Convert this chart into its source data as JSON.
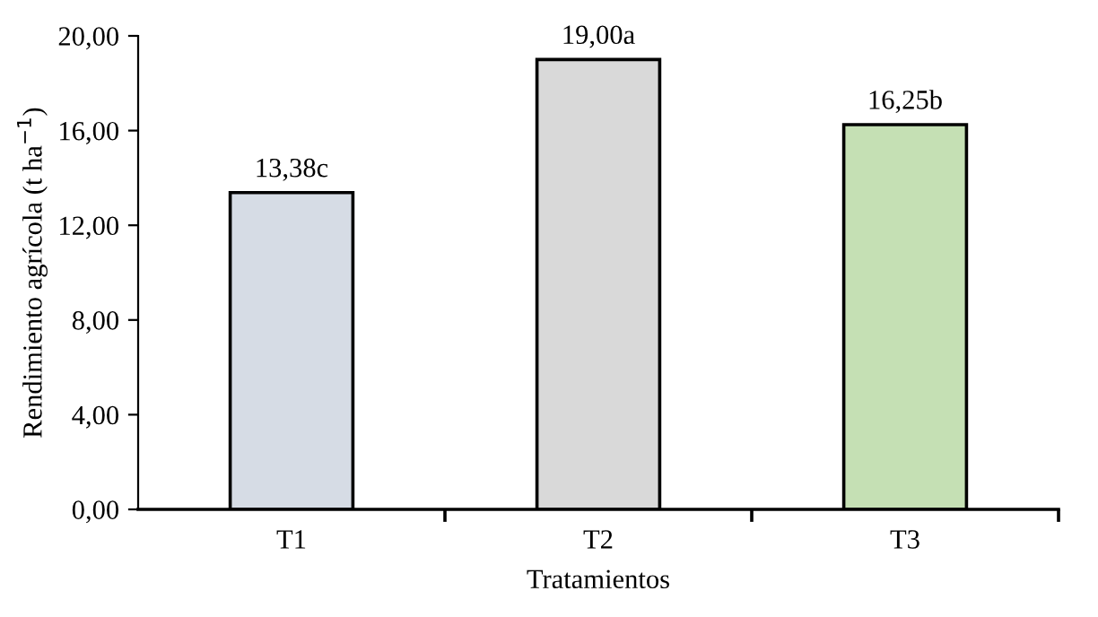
{
  "chart_data": {
    "type": "bar",
    "xlabel": "Tratamientos",
    "ylabel": "Rendimiento agrícola (t ha$^{−1}$)",
    "categories": [
      "T1",
      "T2",
      "T3"
    ],
    "values": [
      13.38,
      19.0,
      16.25
    ],
    "colors": [
      "#d6dce5",
      "#d9d9d9",
      "#c5e0b4"
    ],
    "value_labels": [
      "13,38c",
      "19,00a",
      "16,25b"
    ],
    "ylim": [
      0,
      20
    ],
    "yticks": [
      {
        "value": 0,
        "label": "0,00"
      },
      {
        "value": 4,
        "label": "4,00"
      },
      {
        "value": 8,
        "label": "8,00"
      },
      {
        "value": 12,
        "label": "12,00"
      },
      {
        "value": 16,
        "label": "16,00"
      },
      {
        "value": 20,
        "label": "20,00"
      }
    ],
    "grid": false,
    "legend": false
  }
}
